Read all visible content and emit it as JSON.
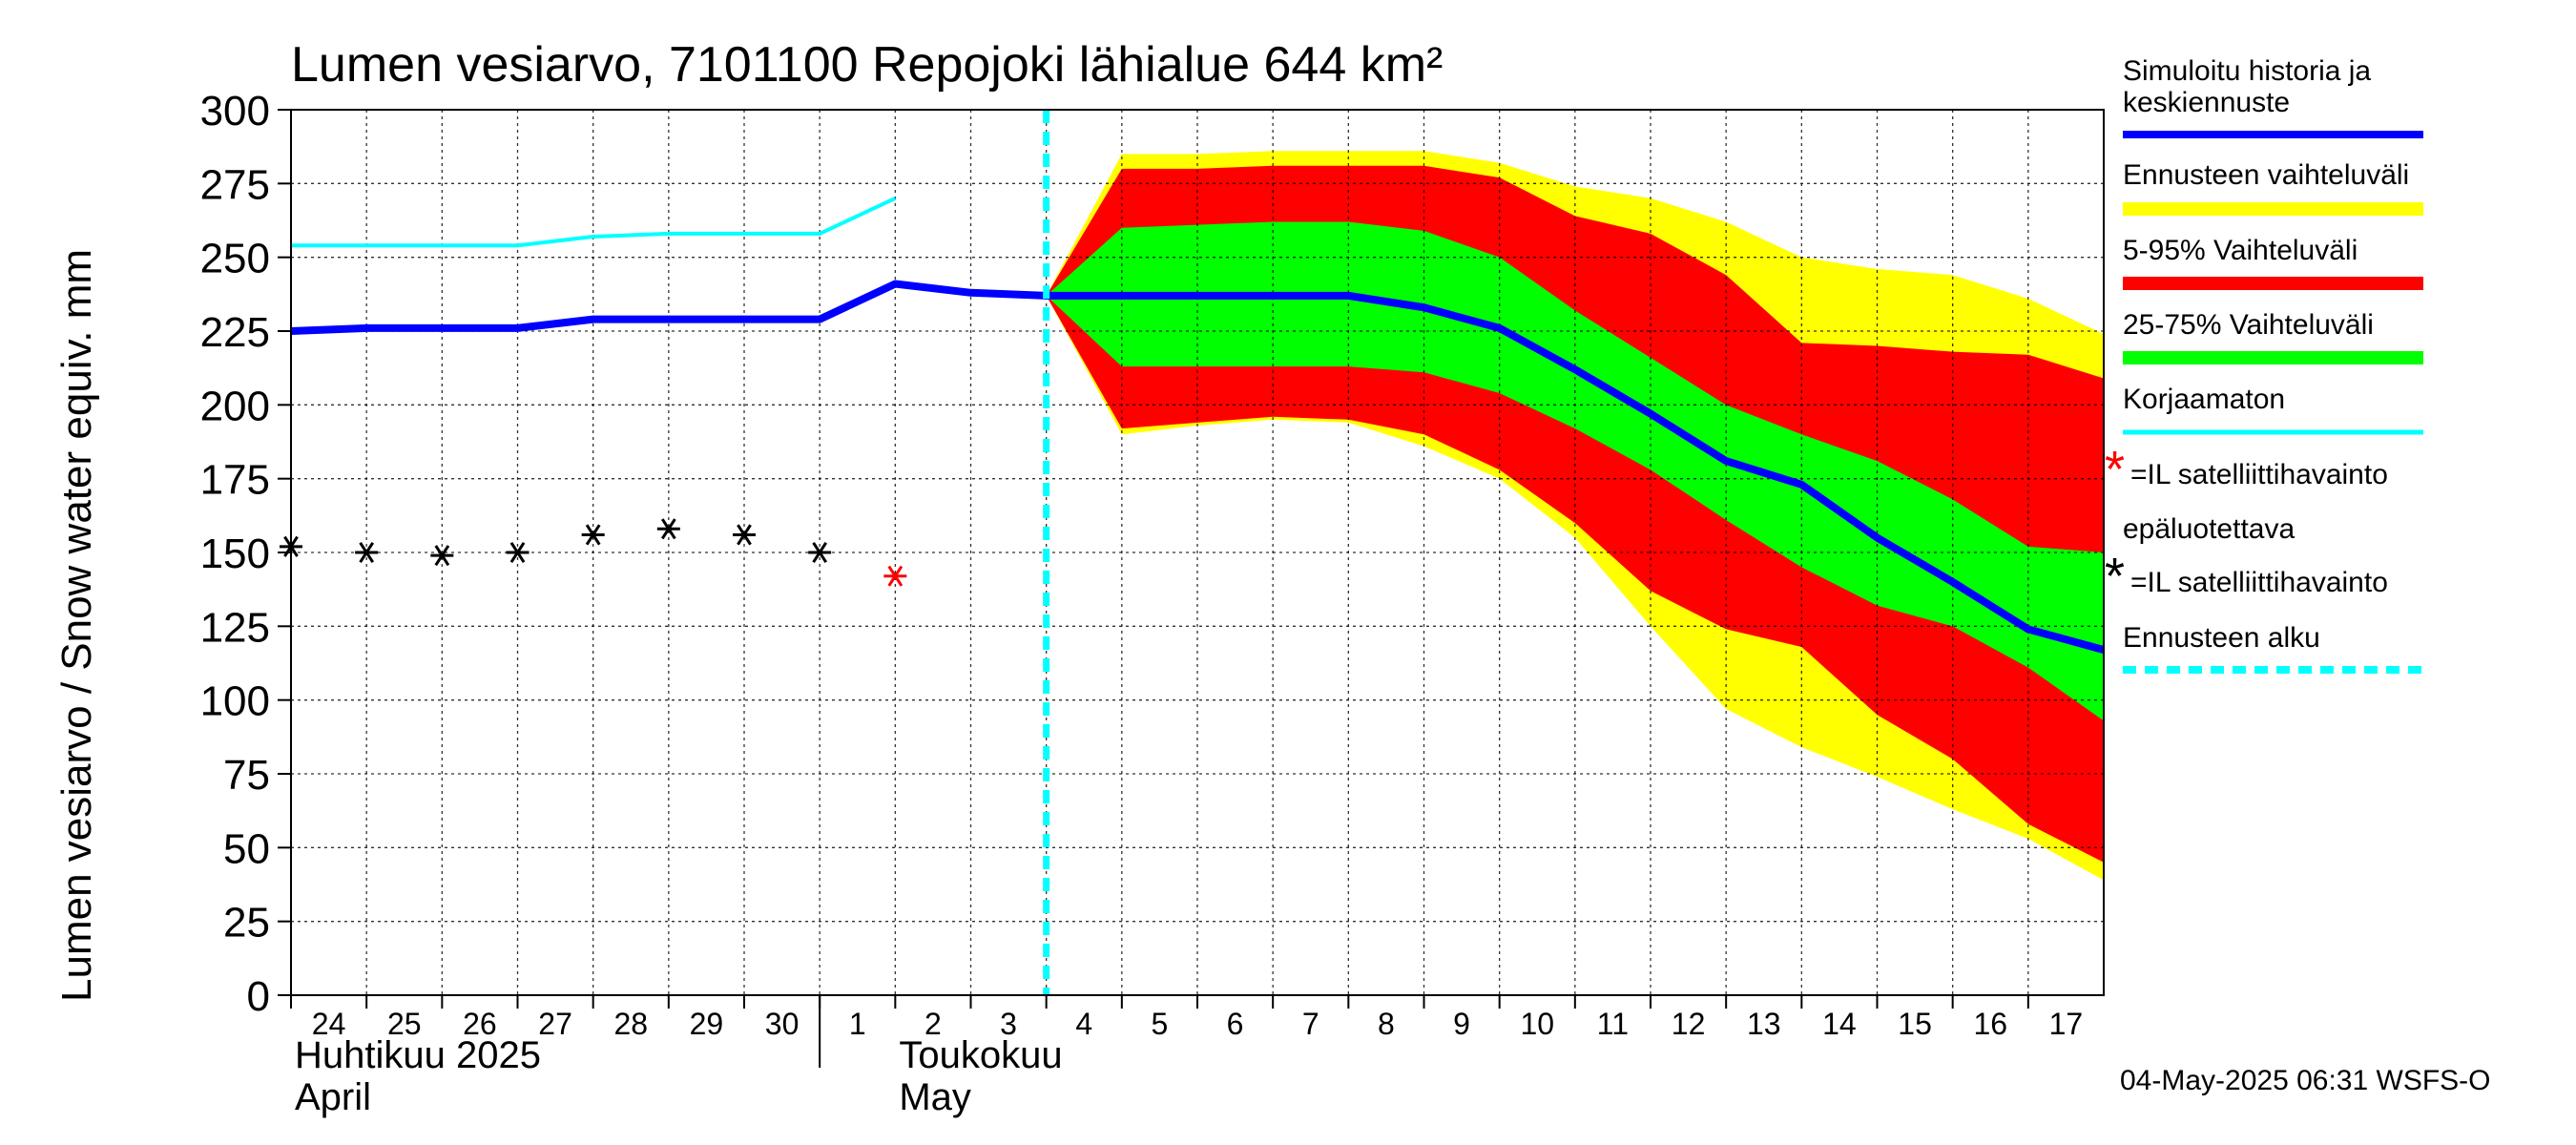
{
  "chart_data": {
    "type": "area",
    "title": "Lumen vesiarvo, 7101100 Repojoki lähialue 644 km²",
    "ylabel": "Lumen vesiarvo / Snow water equiv.    mm",
    "ylim": [
      0,
      300
    ],
    "yticks": [
      0,
      25,
      50,
      75,
      100,
      125,
      150,
      175,
      200,
      225,
      250,
      275,
      300
    ],
    "grid": true,
    "legend_position": "right",
    "x_domain": [
      "2025-04-24",
      "2025-05-18"
    ],
    "x_day_labels": [
      {
        "date": "2025-04-24",
        "label": "24"
      },
      {
        "date": "2025-04-25",
        "label": "25"
      },
      {
        "date": "2025-04-26",
        "label": "26"
      },
      {
        "date": "2025-04-27",
        "label": "27"
      },
      {
        "date": "2025-04-28",
        "label": "28"
      },
      {
        "date": "2025-04-29",
        "label": "29"
      },
      {
        "date": "2025-04-30",
        "label": "30"
      },
      {
        "date": "2025-05-01",
        "label": "1"
      },
      {
        "date": "2025-05-02",
        "label": "2"
      },
      {
        "date": "2025-05-03",
        "label": "3"
      },
      {
        "date": "2025-05-04",
        "label": "4"
      },
      {
        "date": "2025-05-05",
        "label": "5"
      },
      {
        "date": "2025-05-06",
        "label": "6"
      },
      {
        "date": "2025-05-07",
        "label": "7"
      },
      {
        "date": "2025-05-08",
        "label": "8"
      },
      {
        "date": "2025-05-09",
        "label": "9"
      },
      {
        "date": "2025-05-10",
        "label": "10"
      },
      {
        "date": "2025-05-11",
        "label": "11"
      },
      {
        "date": "2025-05-12",
        "label": "12"
      },
      {
        "date": "2025-05-13",
        "label": "13"
      },
      {
        "date": "2025-05-14",
        "label": "14"
      },
      {
        "date": "2025-05-15",
        "label": "15"
      },
      {
        "date": "2025-05-16",
        "label": "16"
      },
      {
        "date": "2025-05-17",
        "label": "17"
      }
    ],
    "month_labels": [
      {
        "date": "2025-04-24",
        "line1": "Huhtikuu  2025",
        "line2": "April"
      },
      {
        "date": "2025-05-02",
        "line1": "Toukokuu",
        "line2": "May"
      }
    ],
    "month_separator_date": "2025-05-01",
    "forecast_start": "2025-05-04",
    "series": [
      {
        "name": "Ennusteen vaihteluväli",
        "kind": "band",
        "color": "#ffff00",
        "x": [
          "2025-05-04",
          "2025-05-05",
          "2025-05-06",
          "2025-05-07",
          "2025-05-08",
          "2025-05-09",
          "2025-05-10",
          "2025-05-11",
          "2025-05-12",
          "2025-05-13",
          "2025-05-14",
          "2025-05-15",
          "2025-05-16",
          "2025-05-17",
          "2025-05-18"
        ],
        "upper": [
          237,
          285,
          285,
          286,
          286,
          286,
          282,
          274,
          270,
          262,
          250,
          246,
          244,
          236,
          224
        ],
        "lower": [
          237,
          190,
          193,
          195,
          194,
          186,
          175,
          155,
          125,
          97,
          84,
          74,
          63,
          53,
          39
        ]
      },
      {
        "name": "5-95% Vaihteluväli",
        "kind": "band",
        "color": "#ff0000",
        "x": [
          "2025-05-04",
          "2025-05-05",
          "2025-05-06",
          "2025-05-07",
          "2025-05-08",
          "2025-05-09",
          "2025-05-10",
          "2025-05-11",
          "2025-05-12",
          "2025-05-13",
          "2025-05-14",
          "2025-05-15",
          "2025-05-16",
          "2025-05-17",
          "2025-05-18"
        ],
        "upper": [
          237,
          280,
          280,
          281,
          281,
          281,
          277,
          264,
          258,
          244,
          221,
          220,
          218,
          217,
          209
        ],
        "lower": [
          237,
          192,
          194,
          196,
          195,
          190,
          178,
          160,
          137,
          124,
          118,
          95,
          80,
          58,
          45
        ]
      },
      {
        "name": "25-75% Vaihteluväli",
        "kind": "band",
        "color": "#00ff00",
        "x": [
          "2025-05-04",
          "2025-05-05",
          "2025-05-06",
          "2025-05-07",
          "2025-05-08",
          "2025-05-09",
          "2025-05-10",
          "2025-05-11",
          "2025-05-12",
          "2025-05-13",
          "2025-05-14",
          "2025-05-15",
          "2025-05-16",
          "2025-05-17",
          "2025-05-18"
        ],
        "upper": [
          237,
          260,
          261,
          262,
          262,
          259,
          250,
          232,
          216,
          200,
          190,
          181,
          168,
          152,
          150
        ],
        "lower": [
          237,
          213,
          213,
          213,
          213,
          211,
          204,
          192,
          178,
          161,
          145,
          132,
          125,
          111,
          93
        ]
      },
      {
        "name": "Korjaamaton",
        "kind": "line",
        "color": "#00ffff",
        "x": [
          "2025-04-24",
          "2025-04-25",
          "2025-04-26",
          "2025-04-27",
          "2025-04-28",
          "2025-04-29",
          "2025-04-30",
          "2025-05-01",
          "2025-05-02"
        ],
        "y": [
          254,
          254,
          254,
          254,
          257,
          258,
          258,
          258,
          270
        ]
      },
      {
        "name": "Simuloitu historia ja keskiennuste",
        "kind": "line",
        "color": "#0000ff",
        "x": [
          "2025-04-24",
          "2025-04-25",
          "2025-04-26",
          "2025-04-27",
          "2025-04-28",
          "2025-04-29",
          "2025-04-30",
          "2025-05-01",
          "2025-05-02",
          "2025-05-03",
          "2025-05-04",
          "2025-05-05",
          "2025-05-06",
          "2025-05-07",
          "2025-05-08",
          "2025-05-09",
          "2025-05-10",
          "2025-05-11",
          "2025-05-12",
          "2025-05-13",
          "2025-05-14",
          "2025-05-15",
          "2025-05-16",
          "2025-05-17",
          "2025-05-18"
        ],
        "y": [
          225,
          226,
          226,
          226,
          229,
          229,
          229,
          229,
          241,
          238,
          237,
          237,
          237,
          237,
          237,
          233,
          226,
          212,
          197,
          181,
          173,
          155,
          140,
          124,
          117
        ]
      },
      {
        "name": "IL satelliittihavainto",
        "kind": "scatter",
        "color": "#000000",
        "x": [
          "2025-04-24",
          "2025-04-25",
          "2025-04-26",
          "2025-04-27",
          "2025-04-28",
          "2025-04-29",
          "2025-04-30",
          "2025-05-01"
        ],
        "y": [
          152,
          150,
          149,
          150,
          156,
          158,
          156,
          150
        ]
      },
      {
        "name": "IL satelliittihavainto epäluotettava",
        "kind": "scatter",
        "color": "#ff0000",
        "x": [
          "2025-05-02"
        ],
        "y": [
          142
        ]
      }
    ]
  },
  "legend": {
    "sim_line1": "Simuloitu historia ja",
    "sim_line2": "keskiennuste",
    "ens": "Ennusteen vaihteluväli",
    "p595": "5-95% Vaihteluväli",
    "p2575": "25-75% Vaihteluväli",
    "korj": "Korjaamaton",
    "sat_bad_line1": "=IL satelliittihavainto",
    "sat_bad_line2": "epäluotettava",
    "sat": "=IL satelliittihavainto",
    "alku": "Ennusteen alku",
    "star_glyph": "*",
    "colors": {
      "blue": "#0000ff",
      "yellow": "#ffff00",
      "red": "#ff0000",
      "green": "#00ff00",
      "cyan": "#00ffff",
      "black": "#000000"
    }
  },
  "footer": {
    "timestamp": "04-May-2025 06:31 WSFS-O"
  }
}
